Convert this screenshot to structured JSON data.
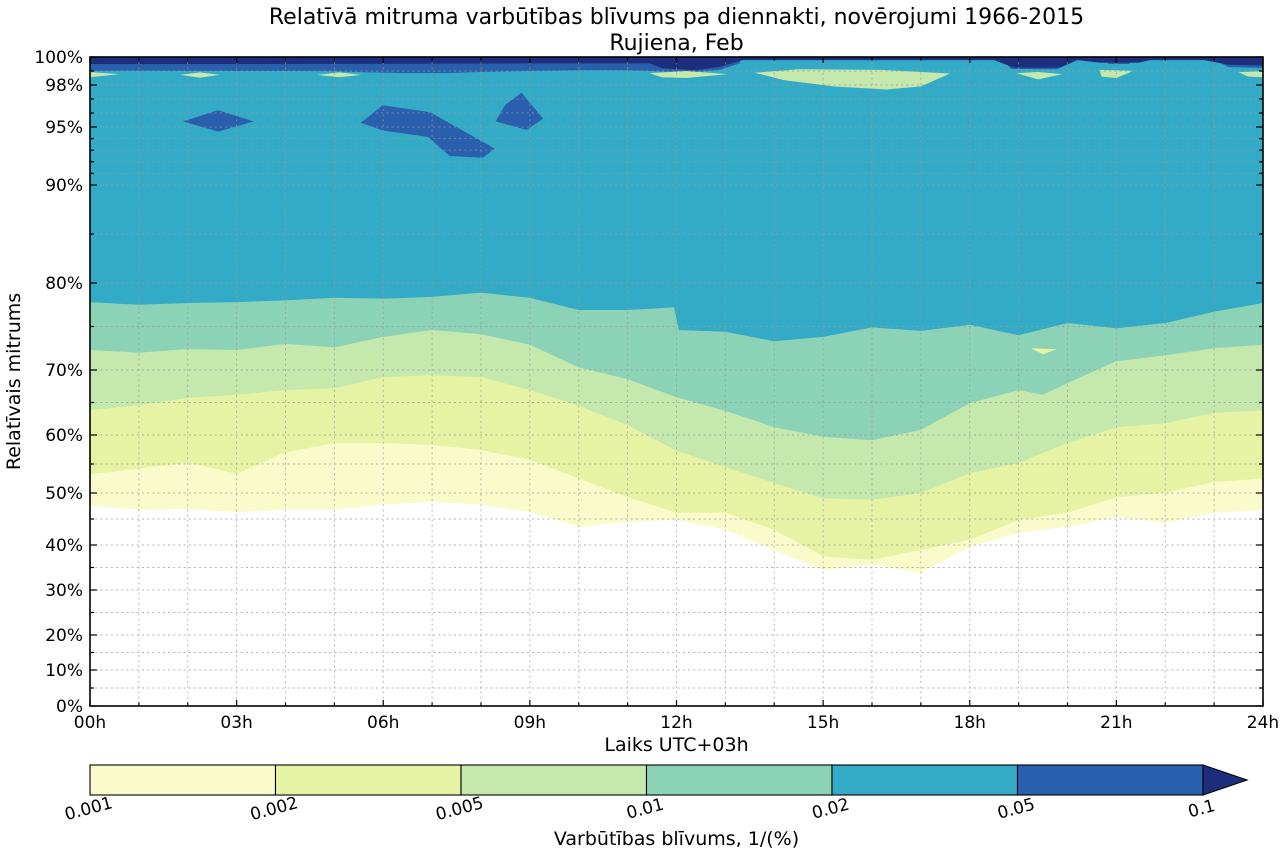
{
  "chart_data": {
    "type": "filled-contour",
    "title": "Relatīvā mitruma varbūtības blīvums pa diennakti, novērojumi 1966-2015",
    "subtitle": "Rujiena, Feb",
    "xlabel": "Laiks UTC+03h",
    "ylabel": "Relatīvais mitrums",
    "x_range_hours": [
      0,
      24
    ],
    "x_tick_hours": [
      0,
      3,
      6,
      9,
      12,
      15,
      18,
      21,
      24
    ],
    "x_tick_labels": [
      "00h",
      "03h",
      "06h",
      "09h",
      "12h",
      "15h",
      "18h",
      "21h",
      "24h"
    ],
    "y_tick_percents": [
      0,
      10,
      20,
      30,
      40,
      50,
      60,
      70,
      80,
      90,
      95,
      98,
      100
    ],
    "y_tick_labels": [
      "0%",
      "10%",
      "20%",
      "30%",
      "40%",
      "50%",
      "60%",
      "70%",
      "80%",
      "90%",
      "95%",
      "98%",
      "100%"
    ],
    "y_axis_scale": "nonlinear, stretched toward 100%",
    "grid_minor_y_percents": [
      5,
      15,
      25,
      35,
      45,
      55,
      65,
      75,
      85,
      91,
      92,
      93,
      94,
      96,
      97,
      99
    ],
    "levels_density": [
      0.001,
      0.002,
      0.005,
      0.01,
      0.02,
      0.05,
      0.1
    ],
    "bands": [
      {
        "min_density": 0.001,
        "color": "#f9fcca",
        "boundary": [
          [
            0,
            47.6
          ],
          [
            1,
            46.7
          ],
          [
            2,
            46.9
          ],
          [
            3,
            46.3
          ],
          [
            4,
            46.8
          ],
          [
            5,
            46.8
          ],
          [
            6,
            47.7
          ],
          [
            7,
            48.3
          ],
          [
            8,
            47.7
          ],
          [
            9,
            46.3
          ],
          [
            10,
            43.5
          ],
          [
            11,
            44.4
          ],
          [
            12,
            44.8
          ],
          [
            13,
            42.9
          ],
          [
            14,
            38.9
          ],
          [
            15,
            34.4
          ],
          [
            16,
            35.6
          ],
          [
            17,
            33.8
          ],
          [
            18,
            39.6
          ],
          [
            19,
            42.3
          ],
          [
            20,
            43.5
          ],
          [
            21,
            45.4
          ],
          [
            22,
            44.2
          ],
          [
            23,
            46.2
          ],
          [
            24,
            46.7
          ]
        ]
      },
      {
        "min_density": 0.002,
        "color": "#e7f3a4",
        "boundary": [
          [
            0,
            53.2
          ],
          [
            1,
            54.2
          ],
          [
            2,
            55.2
          ],
          [
            3,
            53.3
          ],
          [
            4,
            57.0
          ],
          [
            5,
            58.6
          ],
          [
            6,
            58.6
          ],
          [
            7,
            58.3
          ],
          [
            8,
            57.4
          ],
          [
            9,
            55.7
          ],
          [
            10,
            52.5
          ],
          [
            11,
            49.2
          ],
          [
            12,
            46.2
          ],
          [
            13,
            46.2
          ],
          [
            14,
            42.9
          ],
          [
            15,
            37.5
          ],
          [
            16,
            36.7
          ],
          [
            17,
            38.9
          ],
          [
            18,
            41.0
          ],
          [
            19,
            44.8
          ],
          [
            20,
            46.2
          ],
          [
            21,
            49.2
          ],
          [
            22,
            50.0
          ],
          [
            23,
            51.9
          ],
          [
            24,
            52.5
          ]
        ]
      },
      {
        "min_density": 0.005,
        "color": "#c5e8ad",
        "boundary": [
          [
            0,
            63.8
          ],
          [
            1,
            64.6
          ],
          [
            2,
            65.7
          ],
          [
            3,
            66.2
          ],
          [
            4,
            66.9
          ],
          [
            5,
            67.2
          ],
          [
            6,
            68.9
          ],
          [
            7,
            69.2
          ],
          [
            8,
            68.9
          ],
          [
            9,
            66.9
          ],
          [
            10,
            64.5
          ],
          [
            11,
            61.5
          ],
          [
            12,
            57.3
          ],
          [
            13,
            54.5
          ],
          [
            14,
            51.7
          ],
          [
            15,
            49.0
          ],
          [
            16,
            48.7
          ],
          [
            17,
            50.0
          ],
          [
            18,
            53.4
          ],
          [
            19,
            55.2
          ],
          [
            20,
            58.6
          ],
          [
            21,
            61.2
          ],
          [
            22,
            61.8
          ],
          [
            23,
            63.4
          ],
          [
            24,
            63.8
          ]
        ]
      },
      {
        "min_density": 0.01,
        "color": "#8bd2b6",
        "boundary": [
          [
            0,
            72.3
          ],
          [
            1,
            72.0
          ],
          [
            2,
            72.4
          ],
          [
            3,
            72.3
          ],
          [
            4,
            73.0
          ],
          [
            5,
            72.6
          ],
          [
            6,
            73.8
          ],
          [
            7,
            74.6
          ],
          [
            8,
            74.1
          ],
          [
            9,
            72.9
          ],
          [
            10,
            70.3
          ],
          [
            11,
            68.6
          ],
          [
            12,
            65.8
          ],
          [
            13,
            63.7
          ],
          [
            14,
            61.2
          ],
          [
            15,
            59.7
          ],
          [
            16,
            59.1
          ],
          [
            17,
            60.8
          ],
          [
            18,
            64.9
          ],
          [
            19,
            66.9
          ],
          [
            19.5,
            66.2
          ],
          [
            20,
            68.0
          ],
          [
            21,
            71.0
          ],
          [
            22,
            71.7
          ],
          [
            23,
            72.5
          ],
          [
            24,
            72.9
          ]
        ]
      },
      {
        "min_density": 0.02,
        "color": "#33abc6",
        "boundary": [
          [
            0,
            77.8
          ],
          [
            1,
            77.5
          ],
          [
            2,
            77.7
          ],
          [
            3,
            77.8
          ],
          [
            4,
            78.0
          ],
          [
            5,
            78.3
          ],
          [
            6,
            78.2
          ],
          [
            7,
            78.4
          ],
          [
            8,
            78.9
          ],
          [
            9,
            78.3
          ],
          [
            10,
            76.9
          ],
          [
            11,
            76.9
          ],
          [
            11.95,
            77.2
          ],
          [
            12.05,
            74.6
          ],
          [
            13,
            74.4
          ],
          [
            14,
            73.3
          ],
          [
            15,
            73.8
          ],
          [
            16,
            74.9
          ],
          [
            17,
            74.5
          ],
          [
            18,
            75.2
          ],
          [
            19,
            74.0
          ],
          [
            20,
            75.4
          ],
          [
            21,
            74.8
          ],
          [
            22,
            75.4
          ],
          [
            23,
            76.7
          ],
          [
            24,
            77.7
          ]
        ]
      }
    ],
    "top_band_005": {
      "min_density": 0.05,
      "color": "#2a5fae",
      "polygons": [
        [
          [
            0,
            100
          ],
          [
            13.3,
            100
          ],
          [
            13.3,
            99.55
          ],
          [
            12.9,
            99.1
          ],
          [
            12.3,
            98.9
          ],
          [
            11.6,
            98.98
          ],
          [
            11,
            99.05
          ],
          [
            10,
            99.05
          ],
          [
            9,
            99.0
          ],
          [
            7.9,
            98.92
          ],
          [
            7.3,
            98.85
          ],
          [
            6.5,
            98.85
          ],
          [
            5.7,
            98.9
          ],
          [
            5,
            98.98
          ],
          [
            4,
            99.0
          ],
          [
            3,
            99.0
          ],
          [
            2,
            99.0
          ],
          [
            1,
            99.02
          ],
          [
            0,
            99.0
          ]
        ],
        [
          [
            18.6,
            100
          ],
          [
            20.1,
            100
          ],
          [
            19.8,
            99.12
          ],
          [
            18.85,
            99.15
          ]
        ],
        [
          [
            20.6,
            100
          ],
          [
            21.45,
            100
          ],
          [
            21.25,
            99.5
          ],
          [
            20.85,
            99.5
          ]
        ],
        [
          [
            22.85,
            100
          ],
          [
            24,
            100
          ],
          [
            24,
            99.22
          ],
          [
            23.3,
            99.28
          ]
        ]
      ]
    },
    "over_band_01": {
      "min_density": 0.1,
      "color": "#1d2e7c",
      "polygon": [
        [
          0,
          100
        ],
        [
          24,
          100
        ],
        [
          24,
          99.4
        ],
        [
          23.3,
          99.45
        ],
        [
          22.8,
          99.78
        ],
        [
          21.7,
          99.78
        ],
        [
          21.45,
          99.6
        ],
        [
          20.65,
          99.6
        ],
        [
          20.2,
          99.78
        ],
        [
          19.85,
          99.24
        ],
        [
          18.9,
          99.24
        ],
        [
          18.5,
          99.78
        ],
        [
          13.35,
          99.78
        ],
        [
          12.9,
          99.3
        ],
        [
          12.4,
          99.05
        ],
        [
          11.7,
          99.2
        ],
        [
          11.45,
          99.55
        ],
        [
          2.6,
          99.5
        ],
        [
          0,
          99.5
        ]
      ]
    },
    "local_maxima_blobs_at_95pct": {
      "min_density": 0.05,
      "color": "#2a5fae",
      "polygons": [
        [
          [
            1.9,
            95.4
          ],
          [
            2.62,
            96.2
          ],
          [
            3.35,
            95.4
          ],
          [
            2.62,
            94.6
          ]
        ],
        [
          [
            5.54,
            95.3
          ],
          [
            5.99,
            96.55
          ],
          [
            6.96,
            96.05
          ],
          [
            8.28,
            93.15
          ],
          [
            8.04,
            92.35
          ],
          [
            7.36,
            92.5
          ],
          [
            6.91,
            94.15
          ],
          [
            5.99,
            94.7
          ]
        ],
        [
          [
            8.3,
            95.4
          ],
          [
            8.5,
            96.6
          ],
          [
            8.83,
            97.45
          ],
          [
            9.27,
            95.6
          ],
          [
            8.93,
            94.75
          ]
        ]
      ]
    },
    "local_minima_patches_near_99pct": {
      "max_density": 0.01,
      "color": "#c5e8ad",
      "polygons": [
        [
          [
            0,
            98.92
          ],
          [
            0.6,
            98.78
          ],
          [
            0,
            98.55
          ]
        ],
        [
          [
            1.85,
            98.72
          ],
          [
            2.25,
            98.9
          ],
          [
            2.65,
            98.72
          ],
          [
            2.25,
            98.52
          ]
        ],
        [
          [
            4.65,
            98.72
          ],
          [
            5.1,
            98.9
          ],
          [
            5.55,
            98.72
          ],
          [
            5.1,
            98.55
          ]
        ],
        [
          [
            11.45,
            98.85
          ],
          [
            12.2,
            99.0
          ],
          [
            13.05,
            98.78
          ],
          [
            12.2,
            98.5
          ],
          [
            11.7,
            98.55
          ]
        ],
        [
          [
            13.6,
            98.88
          ],
          [
            14.5,
            99.12
          ],
          [
            16.2,
            99.08
          ],
          [
            17.6,
            98.82
          ],
          [
            17.0,
            97.9
          ],
          [
            16.3,
            97.68
          ],
          [
            15.2,
            97.9
          ],
          [
            14.2,
            98.35
          ]
        ],
        [
          [
            18.95,
            98.85
          ],
          [
            19.4,
            98.93
          ],
          [
            19.9,
            98.78
          ],
          [
            19.4,
            98.4
          ]
        ],
        [
          [
            20.65,
            99.08
          ],
          [
            21.35,
            99.02
          ],
          [
            21.0,
            98.5
          ],
          [
            20.7,
            98.6
          ]
        ],
        [
          [
            23.5,
            98.92
          ],
          [
            24,
            98.98
          ],
          [
            24,
            98.55
          ],
          [
            23.7,
            98.6
          ]
        ]
      ]
    },
    "local_minimum_patch_72pct": {
      "max_density": 0.005,
      "color": "#e7f3a4",
      "polygon": [
        [
          19.25,
          72.5
        ],
        [
          19.78,
          72.4
        ],
        [
          19.5,
          71.8
        ]
      ]
    },
    "colorbar": {
      "label": "Varbūtības blīvums, 1/(%)",
      "tick_labels": [
        "0.001",
        "0.002",
        "0.005",
        "0.01",
        "0.02",
        "0.05",
        "0.1"
      ],
      "segment_colors": [
        "#f9fcca",
        "#e7f3a4",
        "#c5e8ad",
        "#8bd2b6",
        "#33abc6",
        "#2a5fae"
      ],
      "over_color": "#1d2e7c",
      "extend": "max-arrow"
    }
  }
}
